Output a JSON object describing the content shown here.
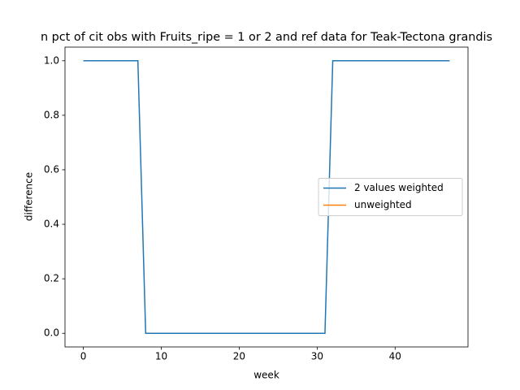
{
  "chart_data": {
    "type": "line",
    "title": "n pct of cit obs with Fruits_ripe = 1 or 2 and ref data for Teak-Tectona grandis",
    "xlabel": "week",
    "ylabel": "difference",
    "x": [
      0,
      1,
      2,
      3,
      4,
      5,
      6,
      7,
      8,
      9,
      10,
      11,
      12,
      13,
      14,
      15,
      16,
      17,
      18,
      19,
      20,
      21,
      22,
      23,
      24,
      25,
      26,
      27,
      28,
      29,
      30,
      31,
      32,
      33,
      34,
      35,
      36,
      37,
      38,
      39,
      40,
      41,
      42,
      43,
      44,
      45,
      46,
      47
    ],
    "series": [
      {
        "name": "2 values weighted",
        "color": "#1f77b4",
        "values": [
          1,
          1,
          1,
          1,
          1,
          1,
          1,
          1,
          0,
          0,
          0,
          0,
          0,
          0,
          0,
          0,
          0,
          0,
          0,
          0,
          0,
          0,
          0,
          0,
          0,
          0,
          0,
          0,
          0,
          0,
          0,
          0,
          1,
          1,
          1,
          1,
          1,
          1,
          1,
          1,
          1,
          1,
          1,
          1,
          1,
          1,
          1,
          1
        ]
      },
      {
        "name": "unweighted",
        "color": "#ff7f0e",
        "values": [
          null,
          null,
          null,
          null,
          null,
          null,
          null,
          null,
          null,
          null,
          null,
          null,
          null,
          null,
          null,
          null,
          null,
          null,
          null,
          null,
          null,
          null,
          null,
          null,
          null,
          null,
          null,
          null,
          null,
          null,
          null,
          null,
          null,
          null,
          null,
          null,
          null,
          null,
          null,
          null,
          null,
          null,
          null,
          null,
          null,
          null,
          null,
          null
        ]
      }
    ],
    "xlim": [
      -2.35,
      49.35
    ],
    "xticks": [
      0,
      10,
      20,
      30,
      40
    ],
    "ylim": [
      -0.05,
      1.05
    ],
    "yticks": [
      {
        "value": 0,
        "label": "0.0"
      },
      0.2,
      0.4,
      0.6,
      0.8,
      {
        "value": 1,
        "label": "1.0"
      }
    ],
    "legend": "center right"
  }
}
